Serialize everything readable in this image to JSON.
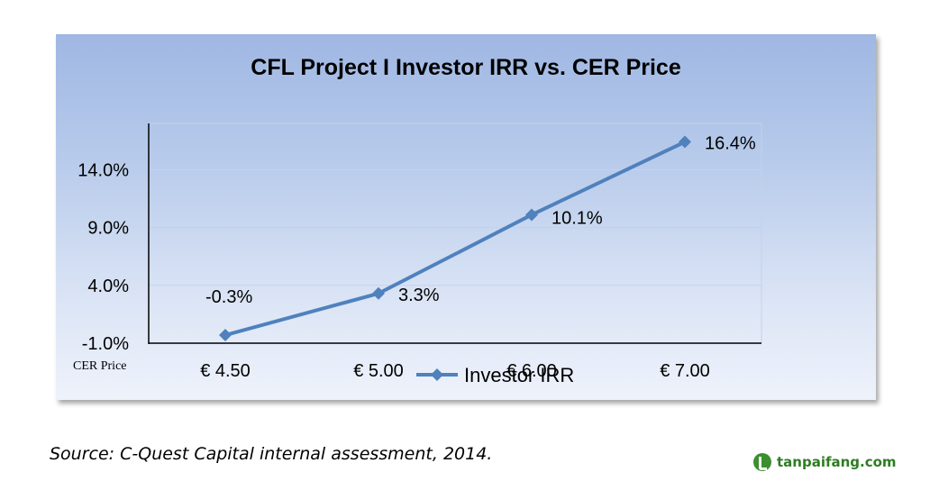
{
  "chart_data": {
    "type": "line",
    "title": "CFL Project I Investor IRR vs. CER Price",
    "xlabel": "CER Price",
    "ylabel": "",
    "categories": [
      "€ 4.50",
      "€ 5.00",
      "€ 6.00",
      "€ 7.00"
    ],
    "y_ticks": [
      "-1.0%",
      "4.0%",
      "9.0%",
      "14.0%"
    ],
    "ylim": [
      -1.0,
      18.0
    ],
    "series": [
      {
        "name": "Investor IRR",
        "values": [
          -0.3,
          3.3,
          10.1,
          16.4
        ],
        "data_labels": [
          "-0.3%",
          "3.3%",
          "10.1%",
          "16.4%"
        ],
        "color": "#4f81bd",
        "marker": "diamond"
      }
    ],
    "grid": true,
    "legend": "bottom"
  },
  "source_note": "Source: C-Quest Capital internal assessment, 2014.",
  "logo": {
    "text": "tanpaifang.com",
    "color": "#2d7d22"
  }
}
